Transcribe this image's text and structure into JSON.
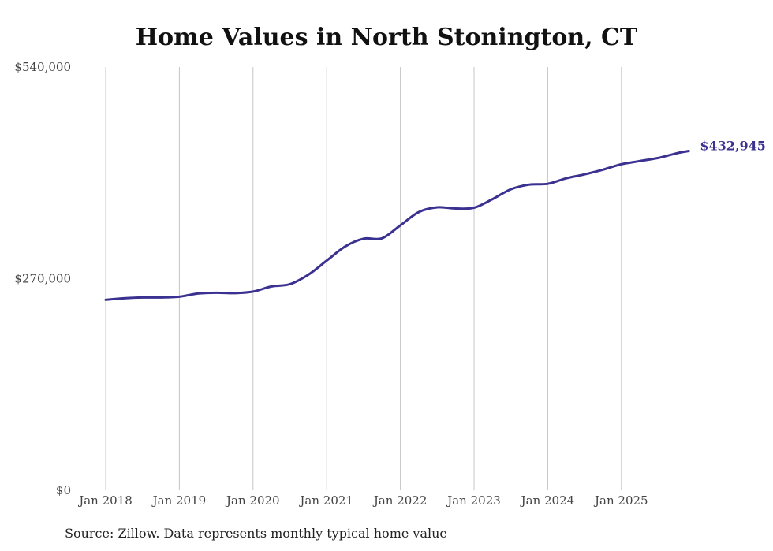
{
  "chart_data": {
    "type": "line",
    "title": "Home Values in North Stonington, CT",
    "xlabel": "",
    "ylabel": "",
    "ylim": [
      0,
      540000
    ],
    "y_ticks": [
      "$0",
      "$270,000",
      "$540,000"
    ],
    "y_tick_values": [
      0,
      270000,
      540000
    ],
    "x_ticks": [
      "Jan 2018",
      "Jan 2019",
      "Jan 2020",
      "Jan 2021",
      "Jan 2022",
      "Jan 2023",
      "Jan 2024",
      "Jan 2025"
    ],
    "x_tick_years": [
      2018,
      2019,
      2020,
      2021,
      2022,
      2023,
      2024,
      2025
    ],
    "grid": "vertical",
    "line_color": "#3a3191",
    "last_value_label": "$432,945",
    "series": [
      {
        "x": [
          "2018-01",
          "2018-04",
          "2018-07",
          "2018-10",
          "2019-01",
          "2019-04",
          "2019-07",
          "2019-10",
          "2020-01",
          "2020-04",
          "2020-07",
          "2020-10",
          "2021-01",
          "2021-04",
          "2021-07",
          "2021-10",
          "2022-01",
          "2022-04",
          "2022-07",
          "2022-10",
          "2023-01",
          "2023-04",
          "2023-07",
          "2023-10",
          "2024-01",
          "2024-04",
          "2024-07",
          "2024-10",
          "2025-01",
          "2025-04",
          "2025-07",
          "2025-10",
          "2025-12"
        ],
        "values": [
          243000,
          245000,
          246000,
          246000,
          247000,
          251000,
          252000,
          251500,
          253500,
          260000,
          263000,
          275000,
          293000,
          311000,
          321000,
          321500,
          338000,
          355000,
          361000,
          359500,
          360500,
          371500,
          384000,
          390000,
          391000,
          398000,
          403000,
          409000,
          416000,
          420000,
          424000,
          430000,
          432945
        ]
      }
    ]
  },
  "source_note": "Source: Zillow. Data represents monthly typical home value"
}
